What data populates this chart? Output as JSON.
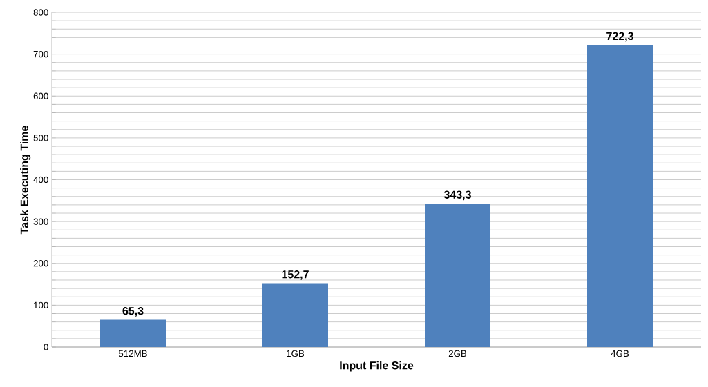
{
  "chart_data": {
    "type": "bar",
    "xlabel": "Input File Size",
    "ylabel": "Task Executing Time",
    "categories": [
      "512MB",
      "1GB",
      "2GB",
      "4GB"
    ],
    "values": [
      65.3,
      152.7,
      343.3,
      722.3
    ],
    "value_labels": [
      "65,3",
      "152,7",
      "343,3",
      "722,3"
    ],
    "color": "#4f81bd",
    "ylim": [
      0,
      800
    ],
    "yticks": [
      0,
      {
        "value": 20,
        "label": null
      },
      {
        "value": 40,
        "label": null
      },
      {
        "value": 60,
        "label": null
      },
      {
        "value": 80,
        "label": null
      },
      100,
      {
        "value": 120,
        "label": null
      },
      {
        "value": 140,
        "label": null
      },
      {
        "value": 160,
        "label": null
      },
      {
        "value": 180,
        "label": null
      },
      200,
      {
        "value": 220,
        "label": null
      },
      {
        "value": 240,
        "label": null
      },
      {
        "value": 260,
        "label": null
      },
      {
        "value": 280,
        "label": null
      },
      300,
      {
        "value": 320,
        "label": null
      },
      {
        "value": 340,
        "label": null
      },
      {
        "value": 360,
        "label": null
      },
      {
        "value": 380,
        "label": null
      },
      400,
      {
        "value": 420,
        "label": null
      },
      {
        "value": 440,
        "label": null
      },
      {
        "value": 460,
        "label": null
      },
      {
        "value": 480,
        "label": null
      },
      500,
      {
        "value": 520,
        "label": null
      },
      {
        "value": 540,
        "label": null
      },
      {
        "value": 560,
        "label": null
      },
      {
        "value": 580,
        "label": null
      },
      600,
      {
        "value": 620,
        "label": null
      },
      {
        "value": 640,
        "label": null
      },
      {
        "value": 660,
        "label": null
      },
      {
        "value": 680,
        "label": null
      },
      700,
      {
        "value": 720,
        "label": null
      },
      {
        "value": 740,
        "label": null
      },
      {
        "value": 760,
        "label": null
      },
      {
        "value": 780,
        "label": null
      },
      800
    ],
    "grid": "y"
  }
}
